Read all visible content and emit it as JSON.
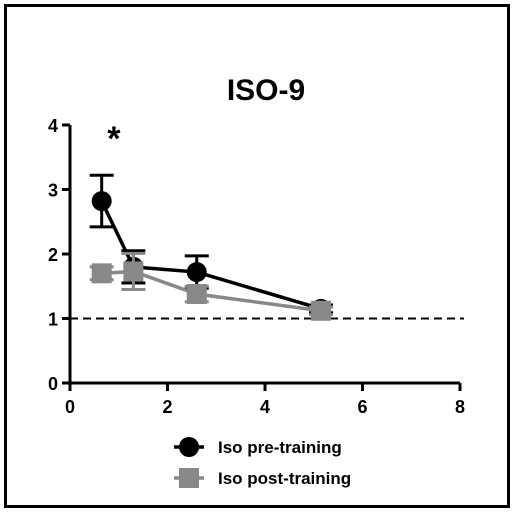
{
  "chart_data": {
    "type": "line",
    "title": "ISO-9",
    "xlabel": "",
    "ylabel": "",
    "xlim": [
      0,
      8
    ],
    "ylim": [
      0,
      4
    ],
    "xticks": [
      0,
      2,
      4,
      6,
      8
    ],
    "yticks": [
      0,
      1,
      2,
      3,
      4
    ],
    "grid": false,
    "legend_position": "bottom",
    "reference_line": {
      "y": 1,
      "style": "dashed"
    },
    "annotations": [
      {
        "text": "*",
        "x": 0.9,
        "y": 3.95
      }
    ],
    "series": [
      {
        "name": "Iso pre-training",
        "color": "#000000",
        "marker": "circle",
        "x": [
          0.65,
          1.3,
          2.6,
          5.15
        ],
        "y": [
          2.82,
          1.8,
          1.72,
          1.15
        ],
        "err": [
          0.4,
          0.25,
          0.25,
          0.06
        ]
      },
      {
        "name": "Iso post-training",
        "color": "#888888",
        "marker": "square",
        "x": [
          0.65,
          1.3,
          2.6,
          5.15
        ],
        "y": [
          1.7,
          1.73,
          1.38,
          1.12
        ],
        "err": [
          0.1,
          0.28,
          0.12,
          0.06
        ]
      }
    ]
  }
}
